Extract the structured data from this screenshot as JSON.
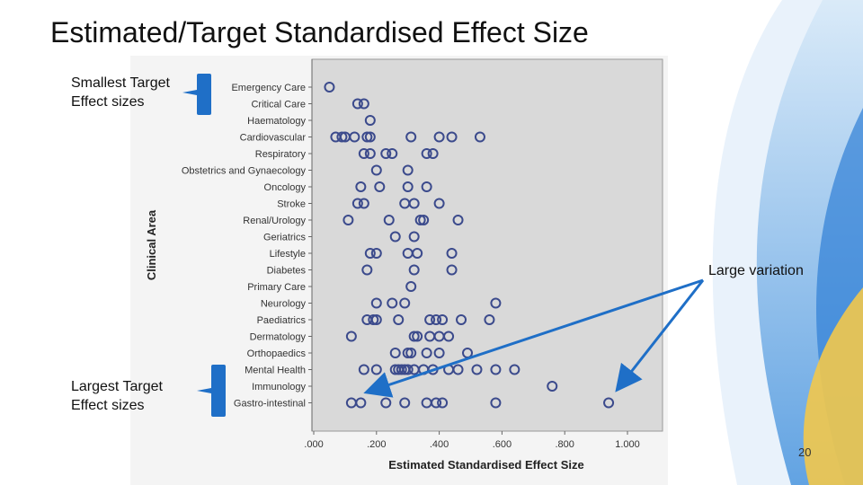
{
  "slide": {
    "title": "Estimated/Target Standardised Effect Size",
    "page_number": "20"
  },
  "annotations": {
    "smallest": "Smallest Target\nEffect sizes",
    "largest": "Largest Target\nEffect sizes",
    "variation": "Large variation"
  },
  "colors": {
    "marker": "#3b4a8c",
    "arrow": "#1f6fc7",
    "plot_bg": "#d9d9d9",
    "deco": "#2f7fd6"
  },
  "chart_data": {
    "type": "scatter",
    "xlabel": "Estimated Standardised Effect Size",
    "ylabel": "Clinical Area",
    "xlim": [
      0.0,
      1.1
    ],
    "xticks": [
      0.0,
      0.2,
      0.4,
      0.6,
      0.8,
      1.0
    ],
    "xtick_labels": [
      ".000",
      ".200",
      ".400",
      ".600",
      ".800",
      "1.000"
    ],
    "grid": false,
    "categories": [
      "Emergency Care",
      "Critical Care",
      "Haematology",
      "Cardiovascular",
      "Respiratory",
      "Obstetrics and Gynaecology",
      "Oncology",
      "Stroke",
      "Renal/Urology",
      "Geriatrics",
      "Lifestyle",
      "Diabetes",
      "Primary Care",
      "Neurology",
      "Paediatrics",
      "Dermatology",
      "Orthopaedics",
      "Mental Health",
      "Immunology",
      "Gastro-intestinal"
    ],
    "points": [
      [
        0.05
      ],
      [
        0.14,
        0.16
      ],
      [
        0.18
      ],
      [
        0.07,
        0.09,
        0.1,
        0.13,
        0.17,
        0.18,
        0.31,
        0.4,
        0.44,
        0.53
      ],
      [
        0.16,
        0.18,
        0.23,
        0.25,
        0.36,
        0.38
      ],
      [
        0.2,
        0.3
      ],
      [
        0.15,
        0.21,
        0.3,
        0.36
      ],
      [
        0.14,
        0.16,
        0.29,
        0.32,
        0.4
      ],
      [
        0.11,
        0.24,
        0.34,
        0.35,
        0.46
      ],
      [
        0.26,
        0.32
      ],
      [
        0.18,
        0.2,
        0.3,
        0.33,
        0.44
      ],
      [
        0.17,
        0.32,
        0.44
      ],
      [
        0.31
      ],
      [
        0.2,
        0.25,
        0.29,
        0.58
      ],
      [
        0.17,
        0.19,
        0.2,
        0.27,
        0.37,
        0.39,
        0.41,
        0.47,
        0.56
      ],
      [
        0.12,
        0.32,
        0.33,
        0.37,
        0.4,
        0.43
      ],
      [
        0.26,
        0.3,
        0.31,
        0.36,
        0.4,
        0.49
      ],
      [
        0.16,
        0.2,
        0.26,
        0.27,
        0.28,
        0.29,
        0.3,
        0.32,
        0.35,
        0.38,
        0.43,
        0.46,
        0.52,
        0.58,
        0.64
      ],
      [
        0.76
      ],
      [
        0.12,
        0.15,
        0.23,
        0.29,
        0.36,
        0.39,
        0.41,
        0.58,
        0.94
      ]
    ]
  }
}
